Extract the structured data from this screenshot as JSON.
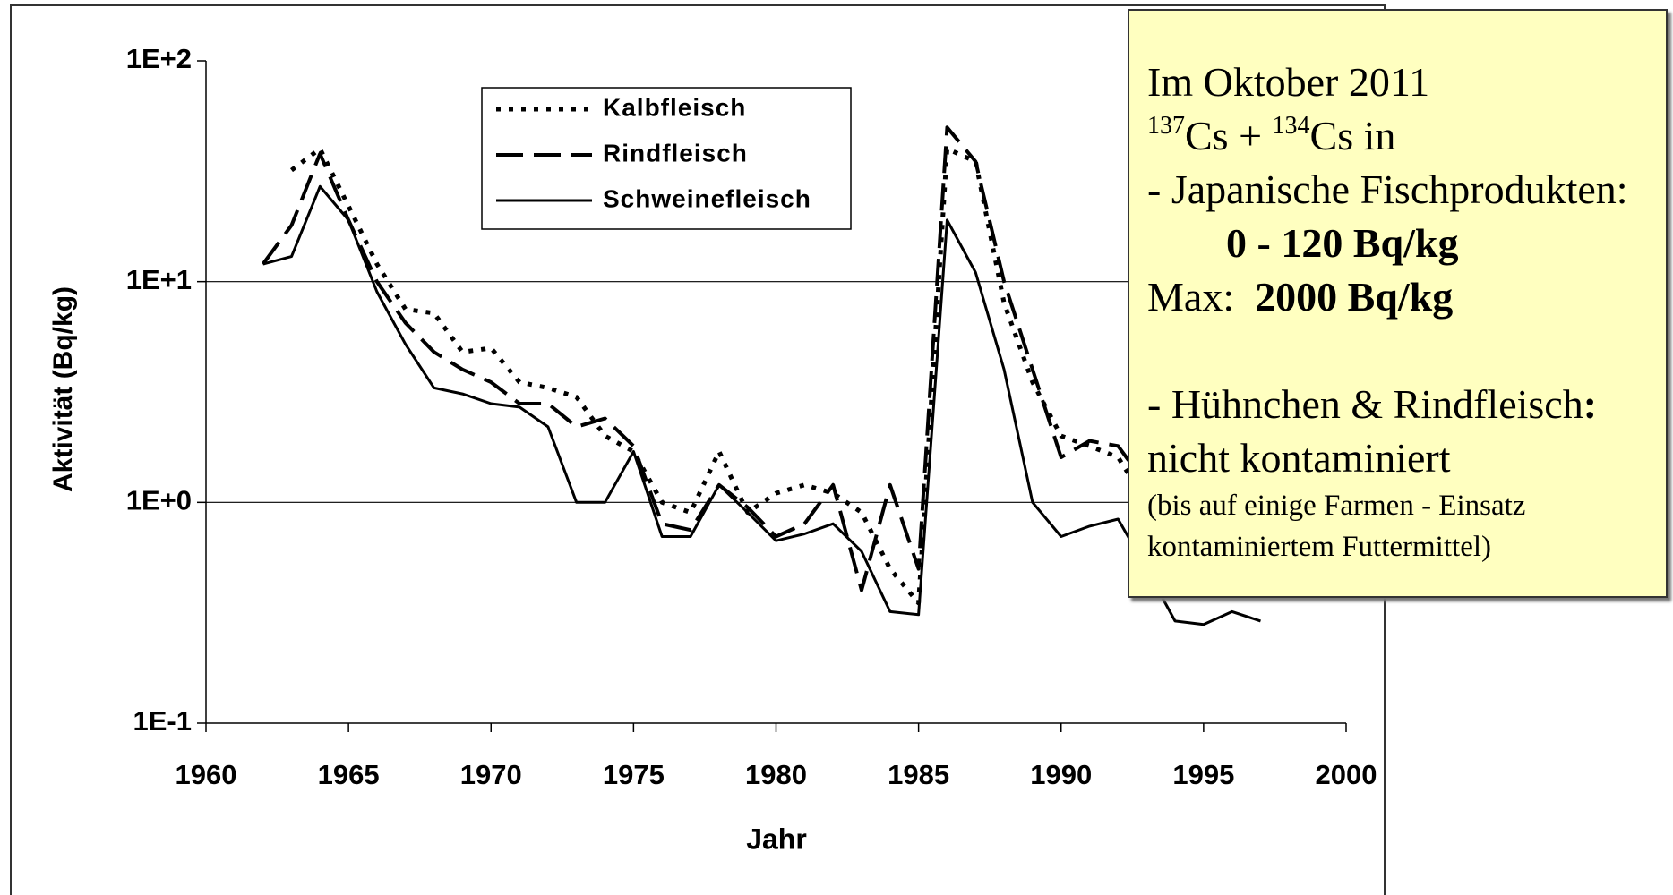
{
  "chart_data": {
    "type": "line",
    "x_label": "Jahr",
    "y_label": "Aktivität (Bq/kg)",
    "x": [
      1962,
      1963,
      1964,
      1965,
      1966,
      1967,
      1968,
      1969,
      1970,
      1971,
      1972,
      1973,
      1974,
      1975,
      1976,
      1977,
      1978,
      1979,
      1980,
      1981,
      1982,
      1983,
      1984,
      1985,
      1986,
      1987,
      1988,
      1989,
      1990,
      1991,
      1992,
      1993,
      1994,
      1995,
      1996,
      1997
    ],
    "series": [
      {
        "name": "Kalbfleisch",
        "color": "#000000",
        "style": "dotted",
        "values": [
          null,
          32,
          40,
          22,
          12,
          7.5,
          7.2,
          4.8,
          5.0,
          3.5,
          3.3,
          3.0,
          2.0,
          1.7,
          1.0,
          0.9,
          1.7,
          0.9,
          1.1,
          1.2,
          1.1,
          0.9,
          0.5,
          0.35,
          40,
          35,
          8,
          3.5,
          2.0,
          1.8,
          1.6,
          1.0,
          null,
          null,
          null,
          null
        ]
      },
      {
        "name": "Rindfleisch",
        "color": "#000000",
        "style": "dashed",
        "values": [
          12,
          18,
          38,
          19,
          10,
          6.5,
          4.8,
          4.0,
          3.5,
          2.8,
          2.8,
          2.2,
          2.4,
          1.8,
          0.8,
          0.75,
          1.2,
          0.95,
          0.7,
          0.8,
          1.2,
          0.4,
          1.2,
          0.5,
          50,
          35,
          10,
          4,
          1.6,
          1.9,
          1.8,
          1.2,
          null,
          null,
          null,
          null
        ]
      },
      {
        "name": "Schweinefleisch",
        "color": "#000000",
        "style": "solid",
        "values": [
          12,
          13,
          27,
          19,
          9,
          5.2,
          3.3,
          3.1,
          2.8,
          2.7,
          2.2,
          1.0,
          1.0,
          1.7,
          0.7,
          0.7,
          1.2,
          0.9,
          0.67,
          0.72,
          0.8,
          0.6,
          0.32,
          0.31,
          19,
          11,
          4,
          1.0,
          0.7,
          0.78,
          0.84,
          0.5,
          0.29,
          0.28,
          0.32,
          0.29
        ]
      }
    ],
    "xlim": [
      1960,
      2000
    ],
    "xticks": [
      1960,
      1965,
      1970,
      1975,
      1980,
      1985,
      1990,
      1995,
      2000
    ],
    "ylim": [
      0.1,
      100
    ],
    "log_y": true,
    "grid": true,
    "yticks": [
      {
        "value": 0.1,
        "label": "1E-1"
      },
      {
        "value": 1,
        "label": "1E+0"
      },
      {
        "value": 10,
        "label": "1E+1"
      },
      {
        "value": 100,
        "label": "1E+2"
      }
    ],
    "annotation": {
      "line1": "Im Oktober 2011",
      "iso1": "137",
      "cs1": "Cs + ",
      "iso2": "134",
      "cs2": "Cs in",
      "line3": "- Japanische Fischprodukten:",
      "line4": "0 - 120 Bq/kg",
      "max_label": "Max:",
      "max_value": "2000 Bq/kg",
      "line6a": "- Hühnchen & Rindfleisch",
      "line6b": ":",
      "line7": "nicht kontaminiert",
      "line8": "(bis auf einige Farmen - Einsatz",
      "line9": "kontaminiertem Futtermittel)"
    }
  }
}
